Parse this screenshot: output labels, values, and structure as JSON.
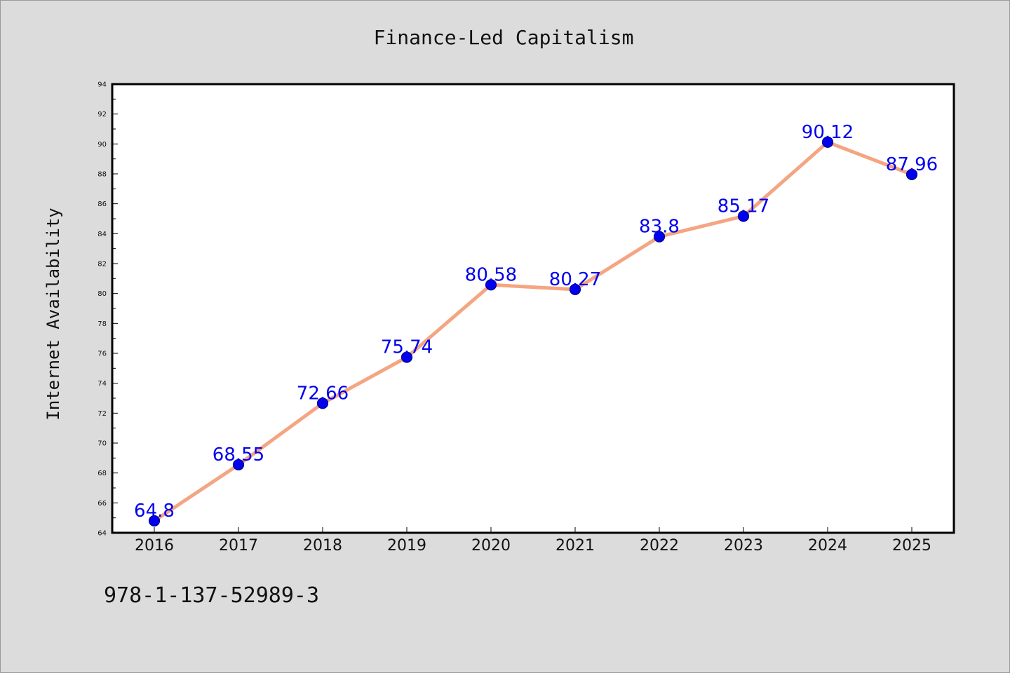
{
  "chart_data": {
    "type": "line",
    "title": "Finance-Led Capitalism",
    "xlabel": "",
    "ylabel": "Internet Availability",
    "categories": [
      "2016",
      "2017",
      "2018",
      "2019",
      "2020",
      "2021",
      "2022",
      "2023",
      "2024",
      "2025"
    ],
    "series": [
      {
        "values": [
          64.8,
          68.55,
          72.66,
          75.74,
          80.58,
          80.27,
          83.8,
          85.17,
          90.12,
          87.96
        ],
        "labels": [
          "64.8",
          "68.55",
          "72.66",
          "75.74",
          "80.58",
          "80.27",
          "83.8",
          "85.17",
          "90.12",
          "87.96"
        ]
      }
    ],
    "ylim": [
      64,
      94
    ],
    "yticks": [
      64,
      66,
      68,
      70,
      72,
      74,
      76,
      78,
      80,
      82,
      84,
      86,
      88,
      90,
      92,
      94
    ],
    "grid": false,
    "legend": "none",
    "colors": {
      "line": "#f4a582",
      "marker": "#0000ee",
      "data_label": "#0000ee",
      "plot_background": "#ffffff",
      "figure_background": "#dcdcdc"
    }
  },
  "footer": {
    "identifier": "978-1-137-52989-3"
  }
}
